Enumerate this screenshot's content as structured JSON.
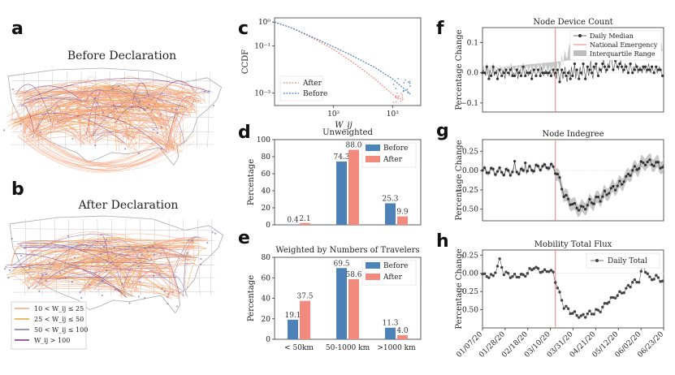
{
  "panels": {
    "a": "a",
    "b": "b",
    "c": "c",
    "d": "d",
    "e": "e",
    "f": "f",
    "g": "g",
    "h": "h"
  },
  "maps": {
    "a_title": "Before Declaration",
    "b_title": "After Declaration",
    "legend": [
      {
        "label": "10 < W_ij ≤ 25",
        "color": "#f4a582"
      },
      {
        "label": "25 < W_ij ≤ 50",
        "color": "#e8a030"
      },
      {
        "label": "50 < W_ij ≤ 100",
        "color": "#8073ac"
      },
      {
        "label": "W_ij > 100",
        "color": "#762a83"
      }
    ]
  },
  "colors": {
    "before": "#4c82b8",
    "after": "#f28b7d",
    "median": "#333333",
    "band": "#bdbdbd",
    "emergency": "#e8807a"
  },
  "chart_data": [
    {
      "id": "c",
      "type": "line",
      "xscale": "log",
      "yscale": "log",
      "xlabel": "W_ij",
      "ylabel": "CCDF",
      "xticks": [
        "10²",
        "10³"
      ],
      "yticks": [
        "10⁰",
        "10⁻¹",
        "10⁻³"
      ],
      "xlim": [
        10,
        3000
      ],
      "ylim": [
        0.0003,
        1.5
      ],
      "series": [
        {
          "name": "After",
          "x": [
            10,
            20,
            50,
            100,
            200,
            500,
            1000,
            1500
          ],
          "y": [
            1,
            0.55,
            0.18,
            0.07,
            0.022,
            0.004,
            0.0009,
            0.0005
          ]
        },
        {
          "name": "Before",
          "x": [
            10,
            20,
            50,
            100,
            200,
            500,
            1000,
            2000
          ],
          "y": [
            1,
            0.55,
            0.2,
            0.09,
            0.04,
            0.012,
            0.004,
            0.0009
          ]
        }
      ]
    },
    {
      "id": "d",
      "type": "bar",
      "title": "Unweighted",
      "ylabel": "Percentage",
      "ylim": [
        0,
        100
      ],
      "yticks": [
        0,
        20,
        40,
        60,
        80,
        100
      ],
      "categories": [
        "< 50km",
        "50-1000 km",
        ">1000 km"
      ],
      "series": [
        {
          "name": "Before",
          "values": [
            0.4,
            74.3,
            25.3
          ]
        },
        {
          "name": "After",
          "values": [
            2.1,
            88.0,
            9.9
          ]
        }
      ]
    },
    {
      "id": "e",
      "type": "bar",
      "title": "Weighted by Numbers of Travelers",
      "ylabel": "Percentage",
      "ylim": [
        0,
        80
      ],
      "yticks": [
        0,
        20,
        40,
        60,
        80
      ],
      "categories": [
        "< 50km",
        "50-1000 km",
        ">1000 km"
      ],
      "series": [
        {
          "name": "Before",
          "values": [
            19.1,
            69.5,
            11.3
          ]
        },
        {
          "name": "After",
          "values": [
            37.5,
            58.6,
            4.0
          ]
        }
      ]
    },
    {
      "id": "f",
      "type": "line",
      "title": "Node Device Count",
      "ylabel": "Percentage Change",
      "ylim": [
        -0.13,
        0.15
      ],
      "yticks": [
        -0.1,
        0.0,
        0.1
      ],
      "legend": [
        "Daily Median",
        "National Emergency",
        "Interquartile Range"
      ],
      "emergency_day": 68,
      "median": [
        0.0,
        0.01,
        0.0,
        -0.01,
        0.02,
        0.0,
        -0.02,
        0.01,
        -0.01,
        0.0,
        0.02,
        -0.01,
        0.0,
        0.01,
        -0.02,
        0.0,
        0.01,
        0.0,
        -0.01,
        0.01,
        0.0,
        -0.02,
        0.01,
        0.0,
        0.0,
        -0.01,
        0.01,
        0.02,
        -0.01,
        0.0,
        -0.01,
        0.0,
        0.01,
        -0.02,
        0.0,
        0.01,
        -0.01,
        0.0,
        0.02,
        0.0,
        -0.01,
        0.01,
        0.0,
        -0.01,
        0.0,
        0.01,
        -0.02,
        0.0,
        0.01,
        0.0,
        -0.01,
        0.0,
        0.01,
        0.0,
        -0.01,
        0.02,
        0.0,
        -0.01,
        0.0,
        0.01,
        0.0,
        -0.01,
        0.0,
        0.01,
        -0.01,
        0.0,
        0.01,
        -0.01,
        0.0,
        -0.02,
        0.01,
        0.0,
        -0.03,
        -0.01,
        0.01,
        -0.02,
        0.0,
        0.02,
        -0.01,
        -0.03,
        0.0,
        0.01,
        -0.02,
        0.02,
        -0.01,
        0.0,
        0.03,
        -0.02,
        0.01,
        0.0,
        -0.02,
        0.02,
        0.0,
        -0.01,
        0.03,
        0.01,
        -0.02,
        0.0,
        0.02,
        -0.01,
        0.01,
        0.04,
        0.0,
        -0.02,
        0.02,
        0.01,
        0.03,
        0.0,
        -0.01,
        0.02,
        0.01,
        0.0,
        0.03,
        0.05,
        0.02,
        0.0,
        0.01,
        0.03,
        0.02,
        0.04,
        0.06,
        0.03,
        0.01,
        0.02,
        0.04,
        0.03,
        0.02,
        0.01,
        0.03,
        0.04,
        0.02,
        0.0,
        0.01,
        0.03,
        0.02,
        0.01,
        0.0,
        0.02,
        0.03,
        0.01,
        0.0,
        0.02,
        0.01,
        0.03,
        0.02,
        0.0,
        0.01,
        0.02,
        0.01,
        0.0,
        0.02,
        0.01,
        0.02,
        0.0,
        0.01,
        0.03,
        0.01,
        0.0,
        0.02,
        0.01,
        0.0,
        0.01,
        0.02,
        0.0,
        0.01,
        0.02,
        0.01,
        0.0,
        -0.01
      ],
      "band_half": [
        0.015,
        0.09
      ]
    },
    {
      "id": "g",
      "type": "line",
      "title": "Node Indegree",
      "ylabel": "Percentage Change",
      "ylim": [
        -0.65,
        0.4
      ],
      "yticks": [
        0.25,
        0.0,
        -0.25,
        -0.5
      ],
      "emergency_day": 68,
      "keypoints": [
        [
          0,
          0.0
        ],
        [
          20,
          -0.02
        ],
        [
          40,
          0.0
        ],
        [
          55,
          0.05
        ],
        [
          62,
          0.05
        ],
        [
          66,
          0.04
        ],
        [
          70,
          -0.05
        ],
        [
          76,
          -0.3
        ],
        [
          84,
          -0.45
        ],
        [
          92,
          -0.5
        ],
        [
          100,
          -0.42
        ],
        [
          110,
          -0.35
        ],
        [
          118,
          -0.27
        ],
        [
          126,
          -0.2
        ],
        [
          134,
          -0.1
        ],
        [
          140,
          0.0
        ],
        [
          146,
          0.05
        ],
        [
          152,
          0.12
        ],
        [
          160,
          0.1
        ],
        [
          169,
          0.05
        ]
      ],
      "spikes": [
        [
          30,
          0.12
        ],
        [
          40,
          0.1
        ]
      ]
    },
    {
      "id": "h",
      "type": "line",
      "title": "Mobility Total Flux",
      "ylabel": "Percentage Change",
      "ylim": [
        -0.75,
        0.32
      ],
      "yticks": [
        0.25,
        0.0,
        -0.25,
        -0.5
      ],
      "legend": [
        "Daily Total"
      ],
      "xticks": [
        "01/07/20",
        "01/28/20",
        "02/18/20",
        "03/10/20",
        "03/31/20",
        "04/21/20",
        "05/12/20",
        "06/02/20",
        "06/23/20"
      ],
      "emergency_day": 68,
      "keypoints": [
        [
          0,
          -0.02
        ],
        [
          10,
          -0.05
        ],
        [
          16,
          0.18
        ],
        [
          20,
          0.0
        ],
        [
          30,
          -0.05
        ],
        [
          40,
          -0.02
        ],
        [
          48,
          0.08
        ],
        [
          56,
          0.02
        ],
        [
          62,
          0.05
        ],
        [
          66,
          0.0
        ],
        [
          70,
          -0.2
        ],
        [
          76,
          -0.45
        ],
        [
          84,
          -0.55
        ],
        [
          92,
          -0.6
        ],
        [
          100,
          -0.55
        ],
        [
          110,
          -0.5
        ],
        [
          118,
          -0.38
        ],
        [
          126,
          -0.3
        ],
        [
          134,
          -0.22
        ],
        [
          140,
          -0.12
        ],
        [
          146,
          -0.1
        ],
        [
          150,
          0.12
        ],
        [
          156,
          -0.08
        ],
        [
          162,
          -0.05
        ],
        [
          169,
          -0.12
        ]
      ],
      "weekly_amp": 0.06
    }
  ]
}
